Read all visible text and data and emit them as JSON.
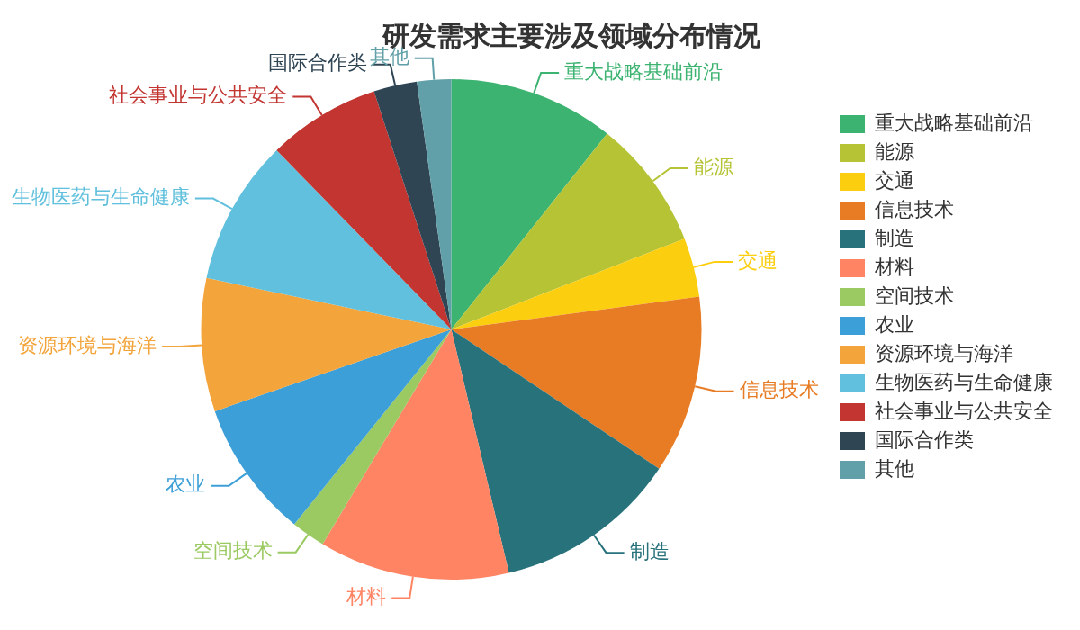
{
  "chart_data": {
    "type": "pie",
    "title": "研发需求主要涉及领域分布情况",
    "categories": [
      "重大战略基础前沿",
      "能源",
      "交通",
      "信息技术",
      "制造",
      "材料",
      "空间技术",
      "农业",
      "资源环境与海洋",
      "生物医药与生命健康",
      "社会事业与公共安全",
      "国际合作类",
      "其他"
    ],
    "values": [
      10.7,
      8.4,
      3.8,
      11.5,
      11.9,
      12.3,
      2.2,
      8.9,
      8.6,
      9.4,
      7.3,
      2.8,
      2.2
    ],
    "colors": [
      "#3cb371",
      "#b5c334",
      "#fcce10",
      "#e87c25",
      "#27727b",
      "#fe8463",
      "#9bca63",
      "#3c9fd8",
      "#f3a43b",
      "#60c0dd",
      "#c23531",
      "#2f4554",
      "#61a0a8"
    ],
    "legend": "right"
  }
}
